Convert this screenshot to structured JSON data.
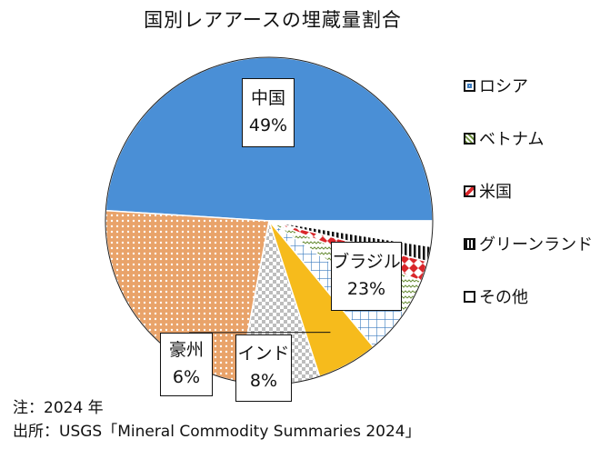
{
  "chart_data": {
    "type": "pie",
    "title": "国別レアアースの埋蔵量割合",
    "slices": [
      {
        "label": "中国",
        "value": 49,
        "value_label": "49%",
        "color": "#4a8fd6",
        "pattern": "solid"
      },
      {
        "label": "ブラジル",
        "value": 23,
        "value_label": "23%",
        "color": "#e9a36a",
        "pattern": "dots"
      },
      {
        "label": "インド",
        "value": 8,
        "value_label": "8%",
        "color": "#cfcfcf",
        "pattern": "checker"
      },
      {
        "label": "豪州",
        "value": 6,
        "value_label": "6%",
        "color": "#f6bb1c",
        "pattern": "solid"
      },
      {
        "label": "ロシア",
        "value": 4.5,
        "color": "#3a7bbf",
        "pattern": "grid"
      },
      {
        "label": "ベトナム",
        "value": 3.5,
        "color": "#6b8f3a",
        "pattern": "wave"
      },
      {
        "label": "米国",
        "value": 2,
        "color": "#d9262a",
        "pattern": "diamonds"
      },
      {
        "label": "グリーンランド",
        "value": 1.5,
        "color": "#111111",
        "pattern": "stripes"
      },
      {
        "label": "その他",
        "value": 2.5,
        "color": "#ffffff",
        "pattern": "solid"
      }
    ],
    "legend": [
      "ロシア",
      "ベトナム",
      "米国",
      "グリーンランド",
      "その他"
    ],
    "legend_position": "right"
  },
  "notes": {
    "line1": "注：2024 年",
    "line2": "出所：USGS「Mineral Commodity Summaries 2024」"
  }
}
